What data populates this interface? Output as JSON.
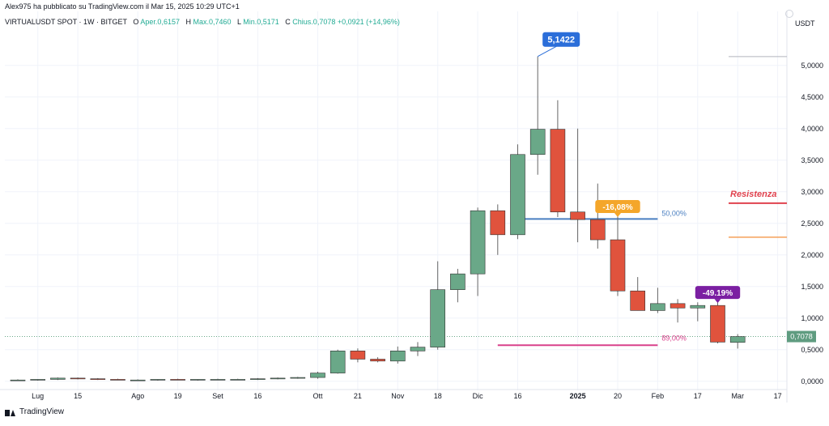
{
  "header": {
    "publisher": "Alex975 ha pubblicato su TradingView.com il Mar 15, 2025 10:29 UTC+1",
    "symbol": "VIRTUALUSDT SPOT · 1W · BITGET",
    "ohlc_label_o": "O",
    "ohlc_o": "Aper.0,6157",
    "ohlc_label_h": "H",
    "ohlc_h": "Max.0,7460",
    "ohlc_label_l": "L",
    "ohlc_l": "Min.0,5171",
    "ohlc_label_c": "C",
    "ohlc_c": "Chius.0,7078",
    "ohlc_change": "+0,0921 (+14,96%)",
    "currency": "USDT"
  },
  "footer": {
    "brand": "TradingView"
  },
  "colors": {
    "up": "#6aa888",
    "down": "#e0533d",
    "blue_line": "#4a7fc1",
    "orange_line": "#f5a05a",
    "pink_line": "#d9418c",
    "red_line": "#e0424e",
    "purple_label": "#7b1fa2",
    "blue_label": "#2b6ed9",
    "orange_label": "#f4a62a",
    "price_label": "#5f9c80"
  },
  "chart_data": {
    "type": "candlestick",
    "title": "",
    "ylim": [
      -0.08,
      5.6
    ],
    "y_ticks": [
      "0,0000",
      "0,5000",
      "1,0000",
      "1,5000",
      "2,0000",
      "2,5000",
      "3,0000",
      "3,5000",
      "4,0000",
      "4,5000",
      "5,0000"
    ],
    "y_tick_values": [
      0,
      0.5,
      1.0,
      1.5,
      2.0,
      2.5,
      3.0,
      3.5,
      4.0,
      4.5,
      5.0
    ],
    "x_ticks": [
      {
        "label": "Lug",
        "index": 1,
        "bold": false
      },
      {
        "label": "15",
        "index": 3,
        "bold": false
      },
      {
        "label": "Ago",
        "index": 6,
        "bold": false
      },
      {
        "label": "19",
        "index": 8,
        "bold": false
      },
      {
        "label": "Set",
        "index": 10,
        "bold": false
      },
      {
        "label": "16",
        "index": 12,
        "bold": false
      },
      {
        "label": "Ott",
        "index": 15,
        "bold": false
      },
      {
        "label": "21",
        "index": 17,
        "bold": false
      },
      {
        "label": "Nov",
        "index": 19,
        "bold": false
      },
      {
        "label": "18",
        "index": 21,
        "bold": false
      },
      {
        "label": "Dic",
        "index": 23,
        "bold": false
      },
      {
        "label": "16",
        "index": 25,
        "bold": false
      },
      {
        "label": "2025",
        "index": 28,
        "bold": true
      },
      {
        "label": "20",
        "index": 30,
        "bold": false
      },
      {
        "label": "Feb",
        "index": 32,
        "bold": false
      },
      {
        "label": "17",
        "index": 34,
        "bold": false
      },
      {
        "label": "Mar",
        "index": 36,
        "bold": false
      },
      {
        "label": "17",
        "index": 38,
        "bold": false
      }
    ],
    "candles": [
      {
        "o": 0.02,
        "h": 0.03,
        "l": 0.01,
        "c": 0.02
      },
      {
        "o": 0.02,
        "h": 0.03,
        "l": 0.01,
        "c": 0.03
      },
      {
        "o": 0.03,
        "h": 0.06,
        "l": 0.02,
        "c": 0.05
      },
      {
        "o": 0.05,
        "h": 0.06,
        "l": 0.03,
        "c": 0.04
      },
      {
        "o": 0.04,
        "h": 0.05,
        "l": 0.02,
        "c": 0.03
      },
      {
        "o": 0.03,
        "h": 0.04,
        "l": 0.02,
        "c": 0.02
      },
      {
        "o": 0.02,
        "h": 0.03,
        "l": 0.01,
        "c": 0.02
      },
      {
        "o": 0.02,
        "h": 0.03,
        "l": 0.01,
        "c": 0.03
      },
      {
        "o": 0.03,
        "h": 0.04,
        "l": 0.02,
        "c": 0.02
      },
      {
        "o": 0.02,
        "h": 0.03,
        "l": 0.01,
        "c": 0.03
      },
      {
        "o": 0.03,
        "h": 0.04,
        "l": 0.02,
        "c": 0.03
      },
      {
        "o": 0.03,
        "h": 0.04,
        "l": 0.02,
        "c": 0.03
      },
      {
        "o": 0.03,
        "h": 0.05,
        "l": 0.02,
        "c": 0.04
      },
      {
        "o": 0.04,
        "h": 0.06,
        "l": 0.03,
        "c": 0.05
      },
      {
        "o": 0.05,
        "h": 0.07,
        "l": 0.04,
        "c": 0.06
      },
      {
        "o": 0.06,
        "h": 0.15,
        "l": 0.04,
        "c": 0.13
      },
      {
        "o": 0.13,
        "h": 0.5,
        "l": 0.12,
        "c": 0.48
      },
      {
        "o": 0.48,
        "h": 0.52,
        "l": 0.3,
        "c": 0.35
      },
      {
        "o": 0.35,
        "h": 0.38,
        "l": 0.3,
        "c": 0.32
      },
      {
        "o": 0.32,
        "h": 0.55,
        "l": 0.28,
        "c": 0.48
      },
      {
        "o": 0.48,
        "h": 0.62,
        "l": 0.4,
        "c": 0.54
      },
      {
        "o": 0.54,
        "h": 1.9,
        "l": 0.5,
        "c": 1.45
      },
      {
        "o": 1.45,
        "h": 1.78,
        "l": 1.25,
        "c": 1.7
      },
      {
        "o": 1.7,
        "h": 2.75,
        "l": 1.35,
        "c": 2.7
      },
      {
        "o": 2.7,
        "h": 2.8,
        "l": 2.0,
        "c": 2.32
      },
      {
        "o": 2.32,
        "h": 3.75,
        "l": 2.25,
        "c": 3.59
      },
      {
        "o": 3.59,
        "h": 5.1422,
        "l": 3.27,
        "c": 3.99
      },
      {
        "o": 3.99,
        "h": 4.45,
        "l": 2.6,
        "c": 2.68
      },
      {
        "o": 2.68,
        "h": 4.0,
        "l": 2.2,
        "c": 2.56
      },
      {
        "o": 2.56,
        "h": 3.13,
        "l": 2.1,
        "c": 2.24
      },
      {
        "o": 2.24,
        "h": 2.7,
        "l": 1.35,
        "c": 1.43
      },
      {
        "o": 1.43,
        "h": 1.65,
        "l": 1.12,
        "c": 1.12
      },
      {
        "o": 1.12,
        "h": 1.48,
        "l": 1.08,
        "c": 1.23
      },
      {
        "o": 1.23,
        "h": 1.3,
        "l": 0.93,
        "c": 1.16
      },
      {
        "o": 1.16,
        "h": 1.25,
        "l": 0.95,
        "c": 1.2
      },
      {
        "o": 1.2,
        "h": 1.25,
        "l": 0.6,
        "c": 0.62
      },
      {
        "o": 0.6157,
        "h": 0.746,
        "l": 0.5171,
        "c": 0.7078
      }
    ],
    "annotations": {
      "ath_label": "5,1422",
      "ath_price": 5.1422,
      "ath_index": 26,
      "drop1_label": "-16,08%",
      "drop1_index": 30,
      "drop1_price": 2.6,
      "drop2_label": "-49.19%",
      "drop2_index": 35,
      "drop2_price": 1.2,
      "fib50_label": "50,00%",
      "fib50_price": 2.57,
      "fib50_from": 25,
      "fib50_to": 32,
      "fib89_label": "89,00%",
      "fib89_price": 0.57,
      "fib89_from": 24,
      "fib89_to": 32,
      "resistance_label": "Resistenza",
      "resistance_price": 2.82,
      "support_orange_price": 2.28,
      "top_grey_price": 5.14,
      "last_price_label": "0,7078",
      "last_price": 0.7078
    }
  }
}
